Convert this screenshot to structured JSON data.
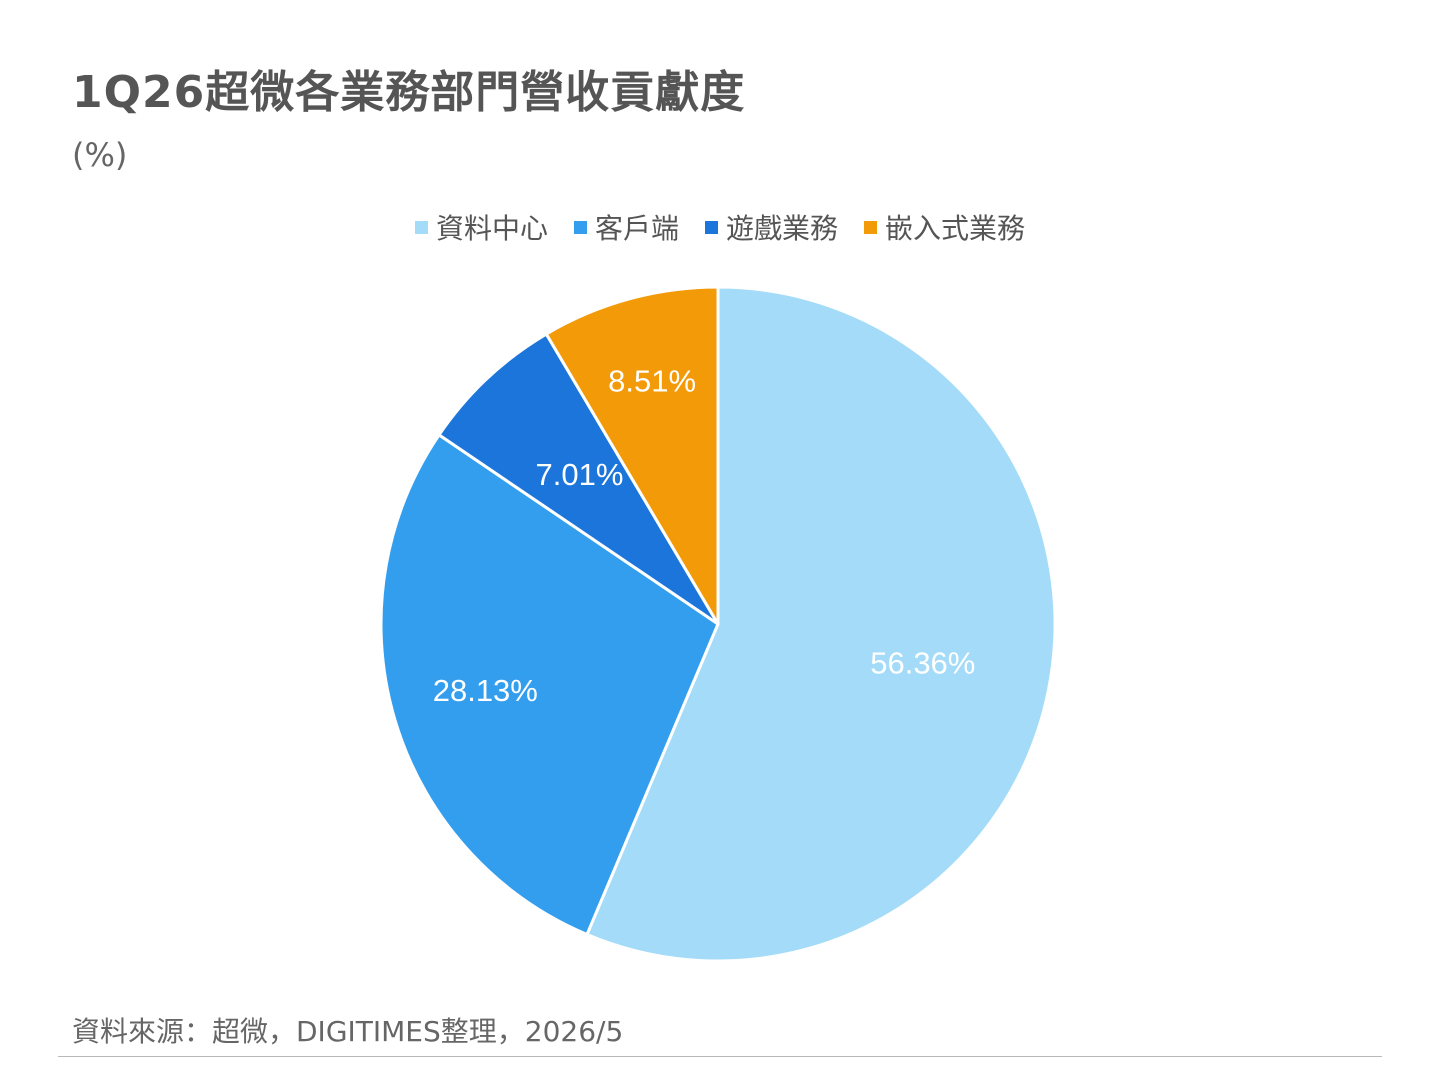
{
  "title": "1Q26超微各業務部門營收貢獻度",
  "subtitle": "(%)",
  "source": "資料來源：超微，DIGITIMES整理，2026/5",
  "chart_data": {
    "type": "pie",
    "title": "1Q26超微各業務部門營收貢獻度",
    "unit": "(%)",
    "legend_position": "top",
    "series": [
      {
        "name": "資料中心",
        "value": 56.36,
        "label": "56.36%",
        "color": "#a4dbf8"
      },
      {
        "name": "客戶端",
        "value": 28.13,
        "label": "28.13%",
        "color": "#339eee"
      },
      {
        "name": "遊戲業務",
        "value": 7.01,
        "label": "7.01%",
        "color": "#1b75da"
      },
      {
        "name": "嵌入式業務",
        "value": 8.51,
        "label": "8.51%",
        "color": "#f29a07"
      }
    ]
  }
}
